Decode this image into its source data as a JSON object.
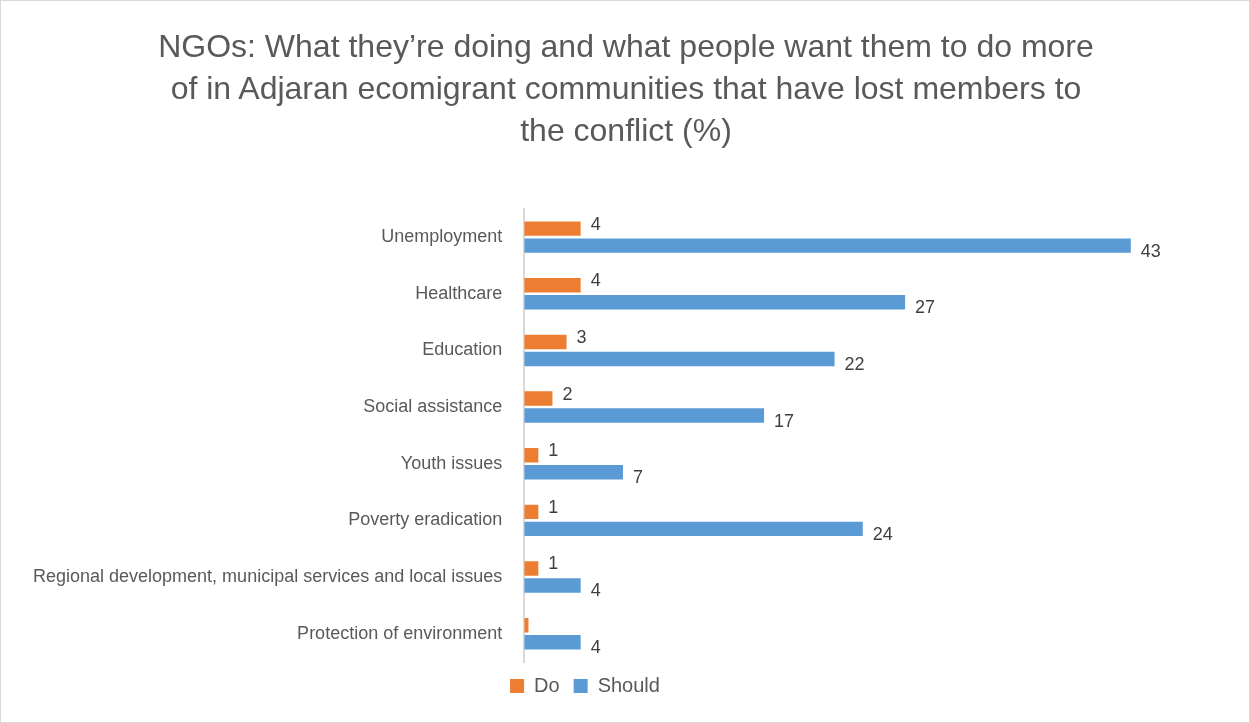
{
  "chart_data": {
    "type": "bar",
    "orientation": "horizontal",
    "title": "NGOs: What they’re doing and what people want them to do more of in Adjaran ecomigrant communities that have lost members to the conflict (%)",
    "categories": [
      "Unemployment",
      "Healthcare",
      "Education",
      "Social assistance",
      "Youth issues",
      "Poverty eradication",
      "Regional development, municipal services and local issues",
      "Protection of environment"
    ],
    "series": [
      {
        "name": "Do",
        "color": "#ed7d31",
        "values": [
          4,
          4,
          3,
          2,
          1,
          1,
          1,
          0.3
        ],
        "value_labels": [
          "4",
          "4",
          "3",
          "2",
          "1",
          "1",
          "1",
          null
        ]
      },
      {
        "name": "Should",
        "color": "#5b9bd5",
        "values": [
          43,
          27,
          22,
          17,
          7,
          24,
          4,
          4
        ],
        "value_labels": [
          "43",
          "27",
          "22",
          "17",
          "7",
          "24",
          "4",
          "4"
        ]
      }
    ],
    "legend": "bottom",
    "grid": false
  }
}
